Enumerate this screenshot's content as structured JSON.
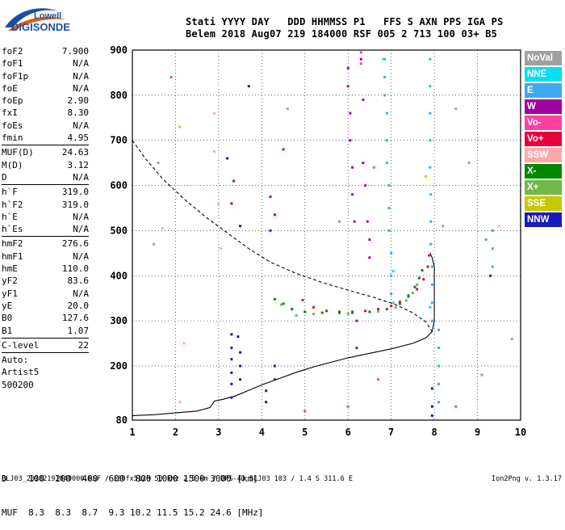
{
  "logo": {
    "line1": "Lowell",
    "line2": "DIGISONDE"
  },
  "header": {
    "line1": "Stati YYYY DAY   DDD HHMMSS P1   FFS S AXN PPS IGA PS",
    "line2": "Belem 2018 Aug07 219 184000 RSF 005 2 713 100 03+ B5"
  },
  "params_a": [
    {
      "k": "foF2",
      "v": "7.900"
    },
    {
      "k": "foF1",
      "v": "N/A"
    },
    {
      "k": "foF1p",
      "v": "N/A"
    },
    {
      "k": "foE",
      "v": "N/A"
    },
    {
      "k": "foEp",
      "v": "2.90"
    },
    {
      "k": "fxI",
      "v": "8.30"
    },
    {
      "k": "foEs",
      "v": "N/A"
    },
    {
      "k": "fmin",
      "v": "4.95"
    }
  ],
  "params_b": [
    {
      "k": "MUF(D)",
      "v": "24.63"
    },
    {
      "k": "M(D)",
      "v": "3.12"
    },
    {
      "k": "D",
      "v": "N/A"
    }
  ],
  "params_c": [
    {
      "k": "h`F",
      "v": "319.0"
    },
    {
      "k": "h`F2",
      "v": "319.0"
    },
    {
      "k": "h`E",
      "v": "N/A"
    },
    {
      "k": "h`Es",
      "v": "N/A"
    }
  ],
  "params_d": [
    {
      "k": "hmF2",
      "v": "276.6"
    },
    {
      "k": "hmF1",
      "v": "N/A"
    },
    {
      "k": "hmE",
      "v": "110.0"
    },
    {
      "k": "yF2",
      "v": "83.6"
    },
    {
      "k": "yF1",
      "v": "N/A"
    },
    {
      "k": "yE",
      "v": "20.0"
    },
    {
      "k": "B0",
      "v": "127.6"
    },
    {
      "k": "B1",
      "v": "1.07"
    }
  ],
  "params_e": [
    {
      "k": "C-level",
      "v": "22"
    }
  ],
  "params_f": [
    "Auto:",
    "Artist5",
    "500200"
  ],
  "legend": [
    {
      "label": "NoVal",
      "color": "#a0a0a0"
    },
    {
      "label": "NNE",
      "color": "#00e0f0"
    },
    {
      "label": "E",
      "color": "#40a8f0"
    },
    {
      "label": "W",
      "color": "#a000a0"
    },
    {
      "label": "Vo-",
      "color": "#ff40a0"
    },
    {
      "label": "Vo+",
      "color": "#e8003c"
    },
    {
      "label": "SSW",
      "color": "#ffa8a8"
    },
    {
      "label": "X-",
      "color": "#008800"
    },
    {
      "label": "X+",
      "color": "#70b848"
    },
    {
      "label": "SSE",
      "color": "#c8c800"
    },
    {
      "label": "NNW",
      "color": "#1818c0"
    }
  ],
  "bottom": {
    "line1": "D    100  200  400  600  800 1000 1500 3000 [km]",
    "line2": "MUF  8.3  8.3  8.7  9.3 10.2 11.5 15.2 24.6 [MHz]"
  },
  "footer": "BLJ03_20182191840000.RSF / 180fx512h 50 kHz 2.5 km / DPS-4D BLJ03 103 / 1.4 S 311.6 E",
  "version": "Ion2Png v. 1.3.17",
  "chart_data": {
    "type": "scatter",
    "x": {
      "min": 1,
      "max": 10,
      "ticks": [
        "1",
        "2",
        "3",
        "4",
        "5",
        "6",
        "7",
        "8",
        "9",
        "10"
      ]
    },
    "y": {
      "min": 80,
      "max": 900,
      "ticks": [
        "80",
        "200",
        "300",
        "400",
        "500",
        "600",
        "700",
        "800",
        "900"
      ]
    },
    "grid": true,
    "series": [
      {
        "name": "Vo+",
        "color": "#e8003c",
        "points": [
          [
            4.95,
            346
          ],
          [
            5.2,
            330
          ],
          [
            5.5,
            322
          ],
          [
            5.8,
            320
          ],
          [
            6.1,
            320
          ],
          [
            6.4,
            322
          ],
          [
            6.7,
            326
          ],
          [
            7.0,
            333
          ],
          [
            7.2,
            342
          ],
          [
            7.4,
            354
          ],
          [
            7.6,
            370
          ],
          [
            7.75,
            392
          ],
          [
            7.85,
            420
          ],
          [
            7.88,
            445
          ]
        ]
      },
      {
        "name": "X-",
        "color": "#008800",
        "points": [
          [
            4.3,
            348
          ],
          [
            4.5,
            338
          ],
          [
            4.7,
            326
          ],
          [
            5.0,
            320
          ],
          [
            5.4,
            318
          ],
          [
            5.8,
            318
          ],
          [
            6.1,
            318
          ],
          [
            6.5,
            320
          ],
          [
            6.9,
            326
          ],
          [
            7.2,
            338
          ],
          [
            7.4,
            356
          ],
          [
            7.55,
            375
          ],
          [
            7.65,
            395
          ],
          [
            7.72,
            412
          ]
        ]
      },
      {
        "name": "W",
        "color": "#a000a0",
        "points": [
          [
            6.0,
            860
          ],
          [
            6.0,
            820
          ],
          [
            6.05,
            760
          ],
          [
            6.05,
            700
          ],
          [
            6.1,
            640
          ],
          [
            6.1,
            580
          ],
          [
            6.15,
            520
          ],
          [
            6.3,
            880
          ],
          [
            6.35,
            790
          ],
          [
            6.35,
            650
          ],
          [
            6.4,
            600
          ],
          [
            6.45,
            520
          ],
          [
            6.5,
            480
          ],
          [
            6.5,
            440
          ],
          [
            3.35,
            610
          ],
          [
            3.3,
            560
          ],
          [
            4.2,
            500
          ],
          [
            4.2,
            575
          ],
          [
            4.3,
            535
          ],
          [
            4.5,
            680
          ],
          [
            6.2,
            300
          ],
          [
            6.2,
            240
          ]
        ]
      },
      {
        "name": "E",
        "color": "#40a8f0",
        "points": [
          [
            6.85,
            880
          ],
          [
            6.85,
            840
          ],
          [
            6.85,
            800
          ],
          [
            6.9,
            760
          ],
          [
            6.9,
            700
          ],
          [
            6.9,
            650
          ],
          [
            6.95,
            600
          ],
          [
            6.95,
            550
          ],
          [
            6.95,
            500
          ],
          [
            7.0,
            450
          ],
          [
            7.0,
            400
          ],
          [
            7.0,
            360
          ],
          [
            7.9,
            880
          ],
          [
            7.9,
            820
          ],
          [
            7.9,
            760
          ],
          [
            7.9,
            700
          ],
          [
            7.9,
            640
          ],
          [
            7.92,
            580
          ],
          [
            7.92,
            520
          ],
          [
            7.92,
            470
          ],
          [
            7.95,
            420
          ],
          [
            7.95,
            380
          ],
          [
            7.95,
            340
          ],
          [
            7.95,
            300
          ],
          [
            8.1,
            280
          ],
          [
            8.1,
            240
          ],
          [
            8.1,
            200
          ],
          [
            8.1,
            160
          ],
          [
            8.1,
            120
          ],
          [
            9.35,
            500
          ],
          [
            9.35,
            460
          ],
          [
            9.35,
            420
          ],
          [
            9.2,
            480
          ]
        ]
      },
      {
        "name": "NNW",
        "color": "#1818c0",
        "points": [
          [
            3.3,
            270
          ],
          [
            3.3,
            240
          ],
          [
            3.3,
            215
          ],
          [
            3.3,
            185
          ],
          [
            3.3,
            160
          ],
          [
            3.3,
            130
          ],
          [
            3.45,
            265
          ],
          [
            3.5,
            230
          ],
          [
            3.5,
            200
          ],
          [
            3.5,
            170
          ],
          [
            4.1,
            145
          ],
          [
            4.1,
            120
          ],
          [
            4.3,
            200
          ],
          [
            4.3,
            170
          ],
          [
            3.7,
            820
          ],
          [
            3.2,
            660
          ],
          [
            3.5,
            510
          ],
          [
            9.3,
            400
          ],
          [
            7.95,
            150
          ],
          [
            7.95,
            110
          ],
          [
            7.95,
            90
          ]
        ]
      },
      {
        "name": "X+",
        "color": "#70b848",
        "points": [
          [
            4.45,
            336
          ],
          [
            4.8,
            312
          ],
          [
            5.2,
            315
          ],
          [
            6.0,
            316
          ],
          [
            6.7,
            321
          ],
          [
            7.1,
            330
          ],
          [
            7.35,
            345
          ],
          [
            7.5,
            362
          ],
          [
            7.6,
            380
          ]
        ]
      },
      {
        "name": "Vo-",
        "color": "#ff40a0",
        "points": [
          [
            6.3,
            895
          ],
          [
            6.3,
            870
          ],
          [
            6.6,
            640
          ],
          [
            6.7,
            170
          ],
          [
            6.0,
            110
          ],
          [
            5.0,
            100
          ],
          [
            8.5,
            110
          ],
          [
            1.9,
            840
          ]
        ]
      },
      {
        "name": "SSW",
        "color": "#ffa8a8",
        "points": [
          [
            2.9,
            760
          ],
          [
            2.9,
            675
          ],
          [
            2.2,
            250
          ],
          [
            3.0,
            560
          ],
          [
            3.05,
            460
          ],
          [
            1.7,
            505
          ],
          [
            9.5,
            510
          ],
          [
            2.1,
            120
          ]
        ]
      },
      {
        "name": "SSE",
        "color": "#c8c800",
        "points": [
          [
            2.1,
            730
          ],
          [
            7.8,
            620
          ]
        ]
      },
      {
        "name": "NNE",
        "color": "#00e0f0",
        "points": [
          [
            6.82,
            880
          ],
          [
            7.05,
            410
          ],
          [
            7.05,
            340
          ],
          [
            7.9,
            330
          ]
        ]
      },
      {
        "name": "NoVal",
        "color": "#a0a0a0",
        "points": [
          [
            1.5,
            470
          ],
          [
            1.6,
            650
          ],
          [
            4.6,
            770
          ],
          [
            5.8,
            520
          ],
          [
            8.2,
            510
          ],
          [
            8.8,
            650
          ],
          [
            8.5,
            770
          ],
          [
            9.8,
            260
          ],
          [
            9.1,
            180
          ]
        ]
      }
    ],
    "curves": [
      {
        "name": "profile",
        "style": "solid",
        "points": [
          [
            1.0,
            90
          ],
          [
            1.5,
            92
          ],
          [
            2.0,
            96
          ],
          [
            2.5,
            100
          ],
          [
            2.8,
            108
          ],
          [
            2.85,
            115
          ],
          [
            2.9,
            122
          ],
          [
            3.1,
            126
          ],
          [
            3.4,
            134
          ],
          [
            3.7,
            146
          ],
          [
            4.0,
            158
          ],
          [
            4.4,
            172
          ],
          [
            4.8,
            186
          ],
          [
            5.2,
            198
          ],
          [
            5.6,
            208
          ],
          [
            6.0,
            218
          ],
          [
            6.5,
            228
          ],
          [
            7.0,
            238
          ],
          [
            7.5,
            250
          ],
          [
            7.8,
            262
          ],
          [
            7.95,
            276
          ],
          [
            8.0,
            300
          ],
          [
            8.0,
            330
          ],
          [
            8.0,
            360
          ],
          [
            8.0,
            390
          ],
          [
            8.0,
            420
          ],
          [
            7.95,
            440
          ],
          [
            7.9,
            450
          ]
        ]
      },
      {
        "name": "virtual",
        "style": "dashed",
        "points": [
          [
            1.0,
            700
          ],
          [
            1.3,
            660
          ],
          [
            1.7,
            615
          ],
          [
            2.2,
            570
          ],
          [
            2.7,
            530
          ],
          [
            3.2,
            495
          ],
          [
            3.7,
            460
          ],
          [
            4.2,
            430
          ],
          [
            4.8,
            405
          ],
          [
            5.4,
            385
          ],
          [
            6.0,
            368
          ],
          [
            6.6,
            352
          ],
          [
            7.1,
            336
          ],
          [
            7.5,
            318
          ],
          [
            7.8,
            298
          ],
          [
            7.95,
            276
          ]
        ]
      }
    ]
  }
}
